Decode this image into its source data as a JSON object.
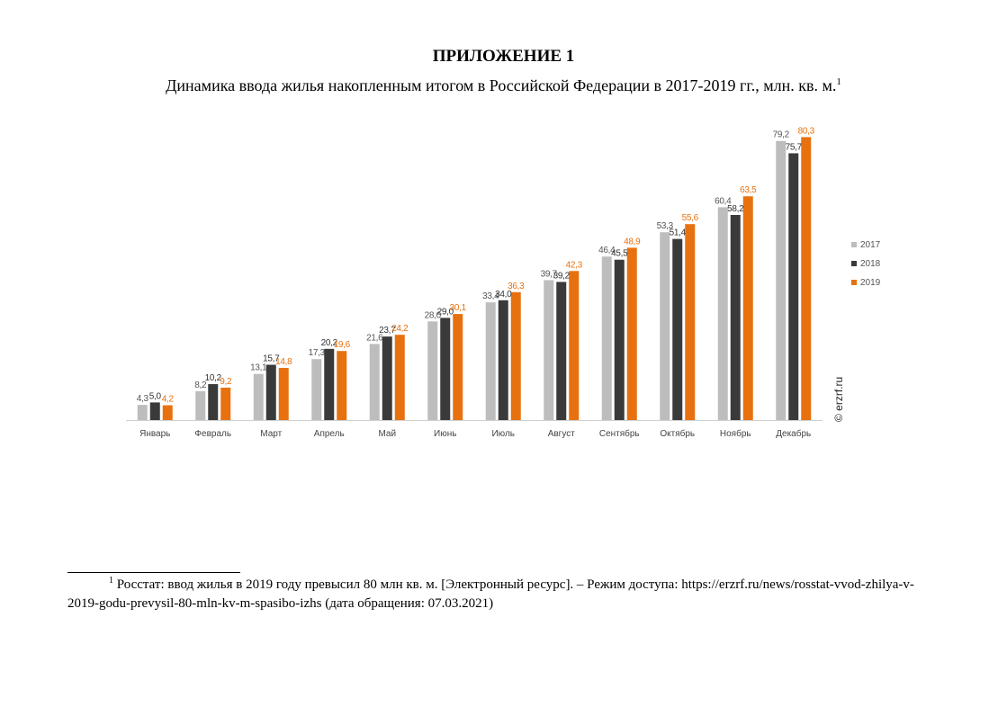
{
  "heading": "ПРИЛОЖЕНИЕ 1",
  "subtitle": {
    "text": "Динамика ввода жилья накопленным итогом в Российской Федерации в 2017-2019 гг., млн. кв. м.",
    "footnote_mark": "1"
  },
  "watermark": "© erzrf.ru",
  "footnote": {
    "mark": "1",
    "text": "Росстат: ввод жилья в 2019 году превысил 80 млн кв. м. [Электронный ресурс]. – Режим доступа: https://erzrf.ru/news/rosstat-vvod-zhilya-v-2019-godu-prevysil-80-mln-kv-m-spasibo-izhs  (дата обращения: 07.03.2021)"
  },
  "chart_data": {
    "type": "bar",
    "title": "",
    "xlabel": "",
    "ylabel": "",
    "ylim": [
      0,
      85
    ],
    "grid": false,
    "legend_position": "right",
    "categories": [
      "Январь",
      "Февраль",
      "Март",
      "Апрель",
      "Май",
      "Июнь",
      "Июль",
      "Август",
      "Сентябрь",
      "Октябрь",
      "Ноябрь",
      "Декабрь"
    ],
    "series": [
      {
        "name": "2017",
        "color": "#bdbdbd",
        "label_color": "#555555",
        "values": [
          4.3,
          8.2,
          13.1,
          17.3,
          21.6,
          28.0,
          33.4,
          39.7,
          46.4,
          53.3,
          60.4,
          79.2
        ],
        "labels": [
          "4,3",
          "8,2",
          "13,1",
          "17,3",
          "21,6",
          "28,0",
          "33,4",
          "39,7",
          "46,4",
          "53,3",
          "60,4",
          "79,2"
        ]
      },
      {
        "name": "2018",
        "color": "#3a3a3a",
        "label_color": "#333333",
        "values": [
          5.0,
          10.2,
          15.7,
          20.2,
          23.7,
          29.0,
          34.0,
          39.2,
          45.5,
          51.4,
          58.2,
          75.7
        ],
        "labels": [
          "5,0",
          "10,2",
          "15,7",
          "20,2",
          "23,7",
          "29,0",
          "34,0",
          "39,2",
          "45,5",
          "51,4",
          "58,2",
          "75,7"
        ]
      },
      {
        "name": "2019",
        "color": "#e8710f",
        "label_color": "#e8710f",
        "values": [
          4.2,
          9.2,
          14.8,
          19.6,
          24.2,
          30.1,
          36.3,
          42.3,
          48.9,
          55.6,
          63.5,
          80.3
        ],
        "labels": [
          "4,2",
          "9,2",
          "14,8",
          "19,6",
          "24,2",
          "30,1",
          "36,3",
          "42,3",
          "48,9",
          "55,6",
          "63,5",
          "80,3"
        ]
      }
    ]
  }
}
